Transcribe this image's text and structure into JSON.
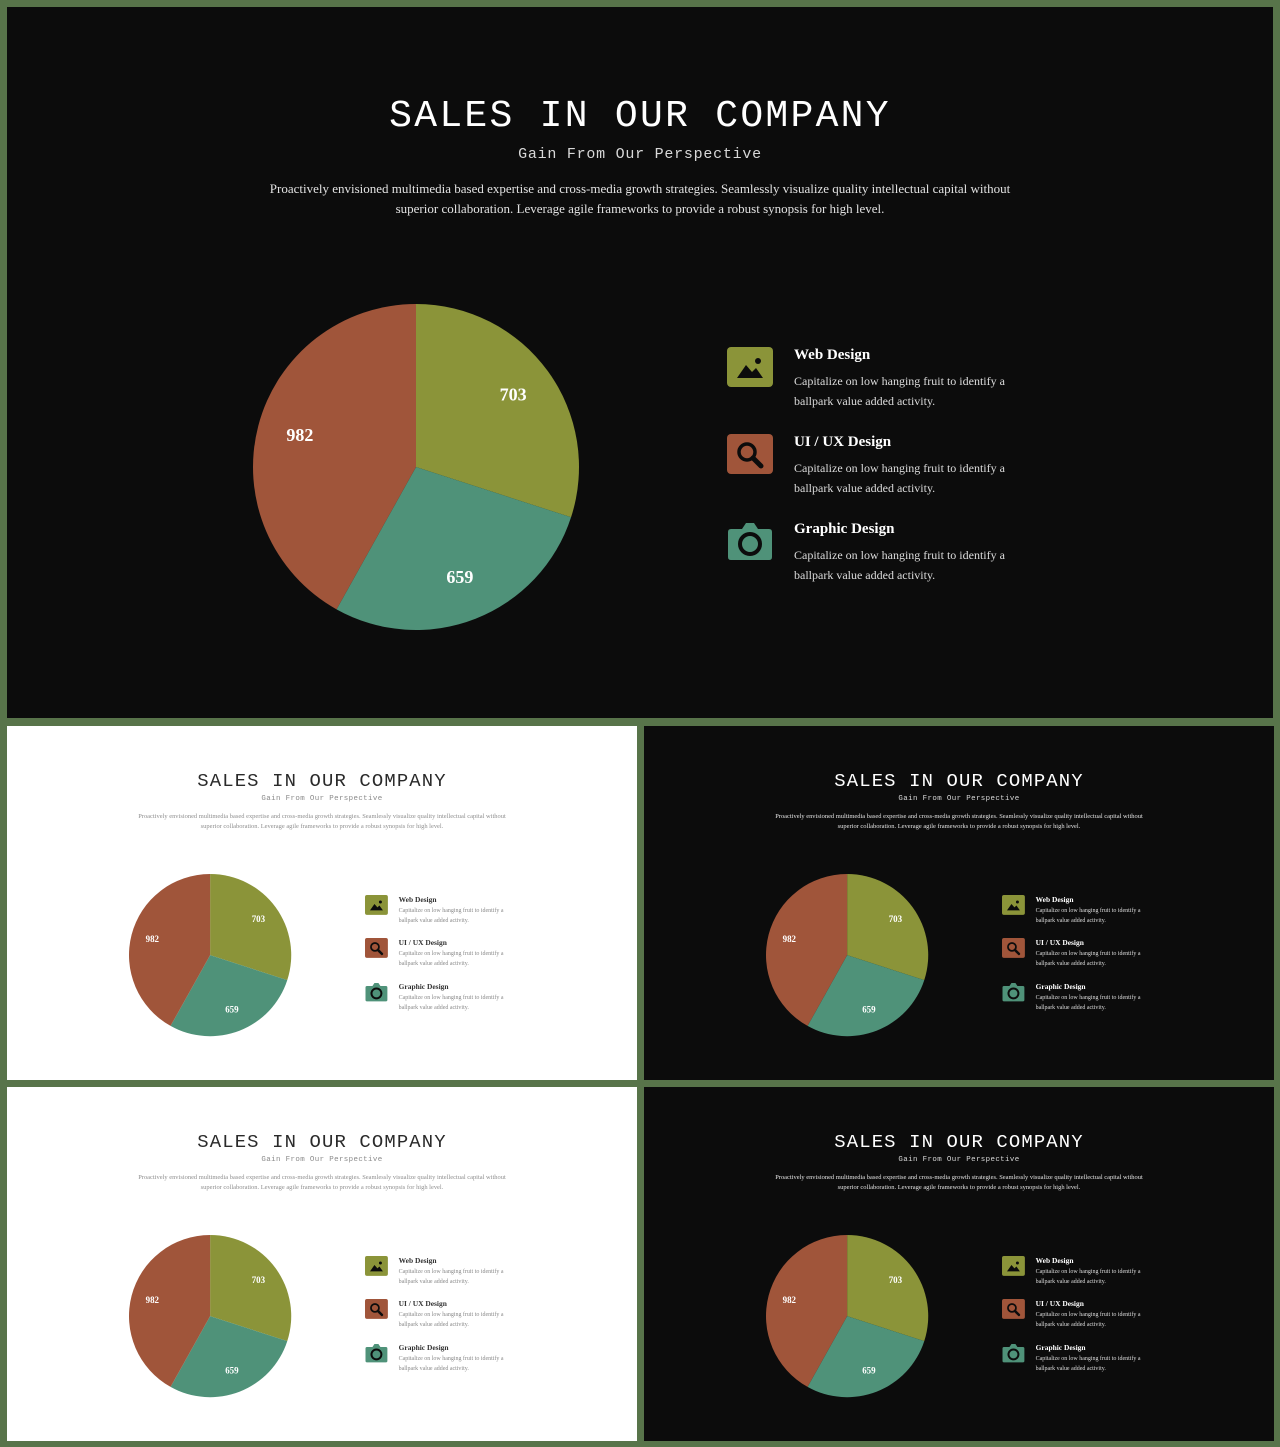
{
  "title": "SALES IN OUR COMPANY",
  "subtitle": "Gain From Our Perspective",
  "description": "Proactively envisioned multimedia based expertise and cross-media growth strategies. Seamlessly visualize quality intellectual capital without superior collaboration. Leverage agile frameworks to provide a robust synopsis for high level.",
  "legend": [
    {
      "title": "Web Design",
      "desc": "Capitalize on low hanging fruit to identify a ballpark value added activity.",
      "icon": "image-icon",
      "color": "#8b9439"
    },
    {
      "title": "UI / UX Design",
      "desc": "Capitalize on low hanging fruit to identify a ballpark value added activity.",
      "icon": "search-icon",
      "color": "#a0553a"
    },
    {
      "title": "Graphic Design",
      "desc": "Capitalize on low hanging fruit to identify a ballpark value added activity.",
      "icon": "camera-icon",
      "color": "#4f9279"
    }
  ],
  "theme": {
    "frame": "#58744a",
    "dark_bg": "#0c0c0c",
    "light_bg": "#ffffff"
  },
  "slides": [
    {
      "theme": "dark"
    },
    {
      "theme": "light"
    },
    {
      "theme": "dark"
    },
    {
      "theme": "light"
    },
    {
      "theme": "dark"
    }
  ],
  "chart_data": {
    "type": "pie",
    "categories": [
      "Web Design",
      "UI / UX Design",
      "Graphic Design"
    ],
    "values": [
      703,
      982,
      659
    ],
    "labels": [
      "703",
      "982",
      "659"
    ],
    "colors": [
      "#8b9439",
      "#a0553a",
      "#4f9279"
    ],
    "slice_order": [
      "Web Design",
      "Graphic Design",
      "UI / UX Design"
    ],
    "start": "top",
    "direction": "clockwise"
  }
}
